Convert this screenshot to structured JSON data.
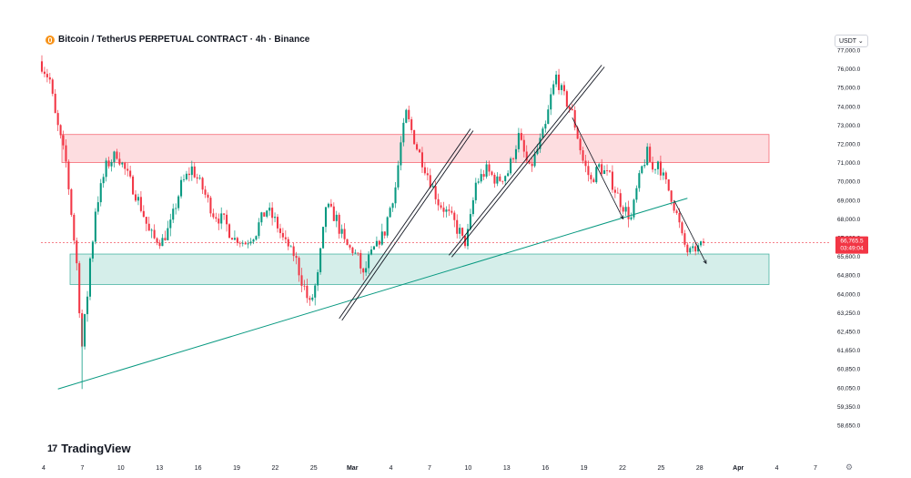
{
  "header": {
    "symbol_title": "Bitcoin / TetherUS PERPETUAL CONTRACT · 4h · Binance",
    "coin_icon": "bitcoin-icon"
  },
  "currency_selector": {
    "label": "USDT",
    "icon": "chevron-down-icon"
  },
  "branding": {
    "logo_text": "TradingView",
    "logo_mark": "17"
  },
  "chart_data": {
    "type": "candlestick",
    "interval": "4h",
    "y_tick_labels": [
      "77,000.0",
      "76,000.0",
      "75,000.0",
      "74,000.0",
      "73,000.0",
      "72,000.0",
      "71,000.0",
      "70,000.0",
      "69,000.0",
      "68,000.0",
      "67,200.0",
      "65,600.0",
      "64,800.0",
      "64,000.0",
      "63,250.0",
      "62,450.0",
      "61,650.0",
      "60,850.0",
      "60,050.0",
      "59,350.0",
      "58,650.0"
    ],
    "x_tick_labels": [
      "4",
      "7",
      "10",
      "13",
      "16",
      "19",
      "22",
      "25",
      "Mar",
      "4",
      "7",
      "10",
      "13",
      "16",
      "19",
      "22",
      "25",
      "28",
      "Apr",
      "4",
      "7"
    ],
    "last_price": {
      "value": "66,765.5",
      "countdown": "03:49:04",
      "color": "#f23645"
    },
    "zones": [
      {
        "name": "resistance",
        "from": 71000,
        "to": 72500,
        "color": "#f23645"
      },
      {
        "name": "support",
        "from": 64400,
        "to": 65800,
        "color": "#089981"
      }
    ],
    "key_levels": {
      "price_high": 76200,
      "price_low": 60000
    },
    "up_color": "#089981",
    "down_color": "#f23645"
  }
}
